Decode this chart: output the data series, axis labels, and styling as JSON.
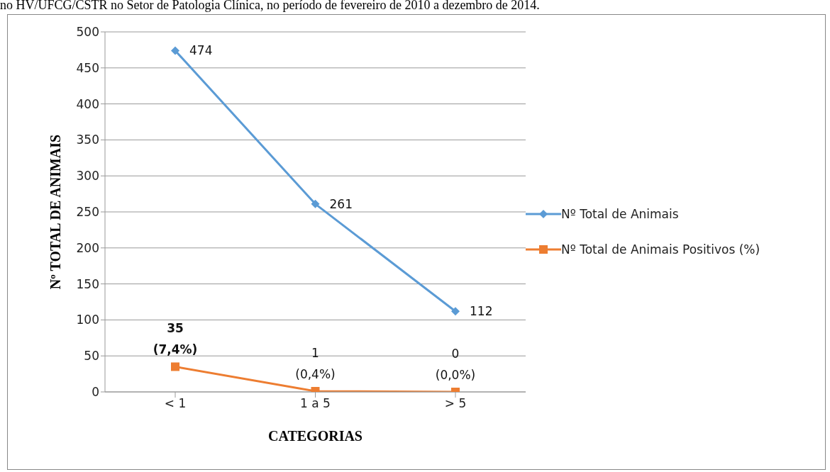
{
  "chart_data": {
    "type": "line",
    "annotations": [
      "no HV/UFCG/CSTR no Setor de Patologia Clínica, no período de fevereiro de 2010 a dezembro de 2014."
    ],
    "xlabel": "CATEGORIAS",
    "ylabel": "Nº TOTAL DE ANIMAIS",
    "categories": [
      "< 1",
      "1 a 5",
      "> 5"
    ],
    "series": [
      {
        "name": "Nº Total de Animais",
        "color": "#5b9bd5",
        "marker": "diamond",
        "values": [
          474,
          261,
          112
        ],
        "value_labels": [
          "474",
          "261",
          "112"
        ]
      },
      {
        "name": "Nº Total de Animais Positivos (%)",
        "color": "#ed7d31",
        "marker": "square",
        "values": [
          35,
          1,
          0
        ],
        "value_labels": [
          "35\n(7,4%)",
          "1\n(0,4%)",
          "0\n(0,0%)"
        ]
      }
    ],
    "ylim": [
      0,
      500
    ],
    "yticks": [
      0,
      50,
      100,
      150,
      200,
      250,
      300,
      350,
      400,
      450,
      500
    ],
    "grid": "y",
    "legend": "right"
  }
}
